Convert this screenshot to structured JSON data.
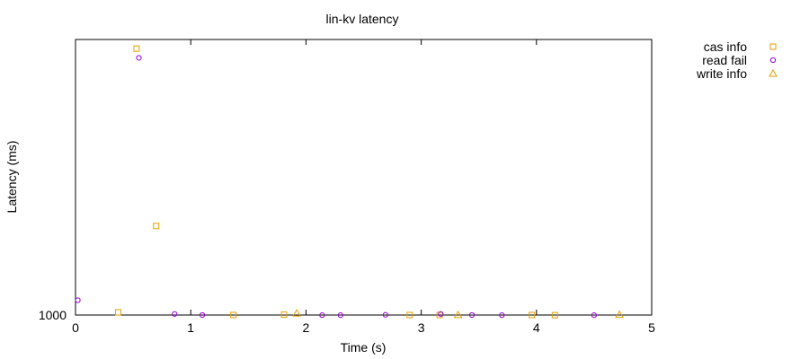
{
  "chart_data": {
    "type": "scatter",
    "title": "lin-kv latency",
    "xlabel": "Time (s)",
    "ylabel": "Latency (ms)",
    "xlim": [
      0,
      5
    ],
    "x_ticks": [
      0,
      1,
      2,
      3,
      4,
      5
    ],
    "y_tick_labels": [
      {
        "value": 1000,
        "label": "1000"
      }
    ],
    "y_scale": "log",
    "ylim": [
      1000,
      1500
    ],
    "grid": false,
    "legend_position": "top-right-outside",
    "series": [
      {
        "name": "cas info",
        "marker": "square",
        "color": "#e69f00",
        "points": [
          {
            "x": 0.37,
            "y": 1004
          },
          {
            "x": 0.53,
            "y": 1480
          },
          {
            "x": 0.7,
            "y": 1140
          },
          {
            "x": 1.37,
            "y": 1000
          },
          {
            "x": 1.81,
            "y": 1000.5
          },
          {
            "x": 2.9,
            "y": 1000
          },
          {
            "x": 3.16,
            "y": 1000
          },
          {
            "x": 3.96,
            "y": 1000
          },
          {
            "x": 4.16,
            "y": 999.8
          }
        ]
      },
      {
        "name": "read fail",
        "marker": "circle",
        "color": "#9400d3",
        "points": [
          {
            "x": 0.02,
            "y": 1022
          },
          {
            "x": 0.55,
            "y": 1460
          },
          {
            "x": 0.86,
            "y": 1001.5
          },
          {
            "x": 1.1,
            "y": 1000
          },
          {
            "x": 2.14,
            "y": 999.8
          },
          {
            "x": 2.3,
            "y": 999.8
          },
          {
            "x": 2.69,
            "y": 1000.3
          },
          {
            "x": 3.17,
            "y": 1001.5
          },
          {
            "x": 3.44,
            "y": 1000
          },
          {
            "x": 3.7,
            "y": 999.8
          },
          {
            "x": 4.5,
            "y": 999.8
          }
        ]
      },
      {
        "name": "write info",
        "marker": "triangle",
        "color": "#e69f00",
        "points": [
          {
            "x": 1.92,
            "y": 1002.5
          },
          {
            "x": 3.32,
            "y": 1000.2
          },
          {
            "x": 4.72,
            "y": 1000.5
          }
        ]
      }
    ]
  }
}
